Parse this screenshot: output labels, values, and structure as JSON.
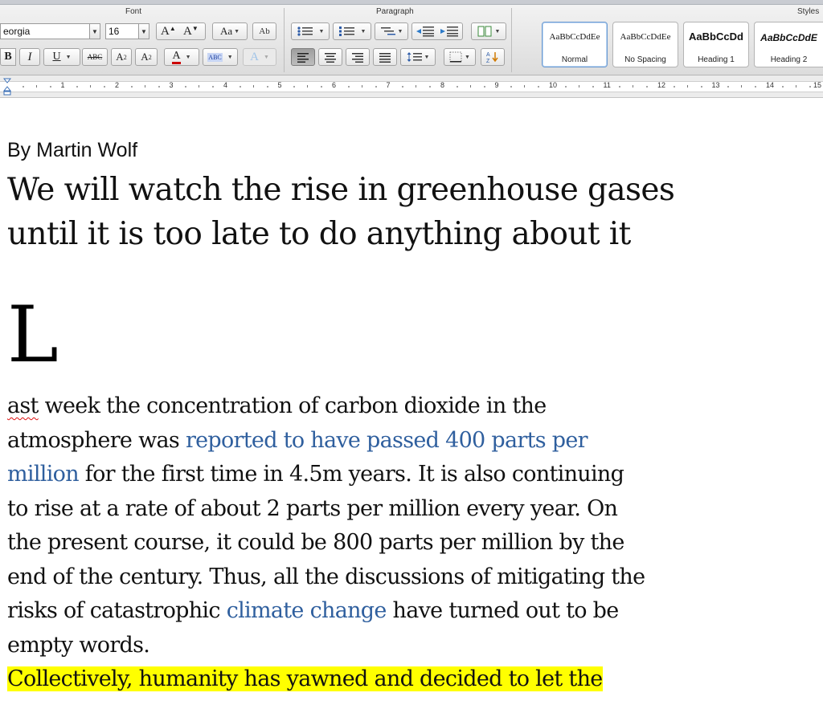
{
  "ribbon": {
    "groups": {
      "font": "Font",
      "paragraph": "Paragraph",
      "styles": "Styles"
    },
    "font": {
      "family_value": "eorgia",
      "size_value": "16",
      "grow_label": "A",
      "shrink_label": "A",
      "change_case_label": "Aa",
      "clear_format_label": "Ab",
      "bold_label": "B",
      "italic_label": "I",
      "underline_label": "U",
      "strike_label": "ABC",
      "superscript_label": "A",
      "subscript_label": "A",
      "font_color_label": "A",
      "highlight_label": "ABC",
      "text_effects_label": "A",
      "font_color_hex": "#cc0000"
    },
    "styles": [
      {
        "sample": "AaBbCcDdEe",
        "name": "Normal",
        "selected": true
      },
      {
        "sample": "AaBbCcDdEe",
        "name": "No Spacing",
        "selected": false
      },
      {
        "sample": "AaBbCcDd",
        "name": "Heading 1",
        "selected": false
      },
      {
        "sample": "AaBbCcDdE",
        "name": "Heading 2",
        "selected": false
      }
    ]
  },
  "ruler": {
    "numbers": [
      "1",
      "2",
      "3",
      "4",
      "5",
      "6",
      "7",
      "8",
      "9",
      "10",
      "11",
      "12",
      "13",
      "14",
      "15"
    ]
  },
  "document": {
    "byline": "By Martin Wolf",
    "headline_line1": "We will watch the rise in greenhouse gases",
    "headline_line2": "until it is too late to do anything about it",
    "dropcap": "L",
    "p1": {
      "l1_a": "ast",
      "l1_b": " week the concentration of carbon dioxide in the",
      "l2_a": "atmosphere was ",
      "l2_link": "reported to have passed 400 parts per",
      "l3_link": "million",
      "l3_b": " for the first time in 4.5m years. It is also continuing",
      "l4": "to rise at a rate of about 2 parts per million every year. On",
      "l5": "the present course, it could be 800 parts per million by the",
      "l6": "end of the century. Thus, all the discussions of mitigating the",
      "l7_a": "risks of catastrophic ",
      "l7_link": "climate change",
      "l7_b": " have turned out to be",
      "l8": "empty words."
    },
    "p2": {
      "l1": "Collectively, humanity has yawned and decided to let the"
    },
    "colors": {
      "link": "#2f5f9e",
      "highlight": "#ffff00"
    }
  }
}
